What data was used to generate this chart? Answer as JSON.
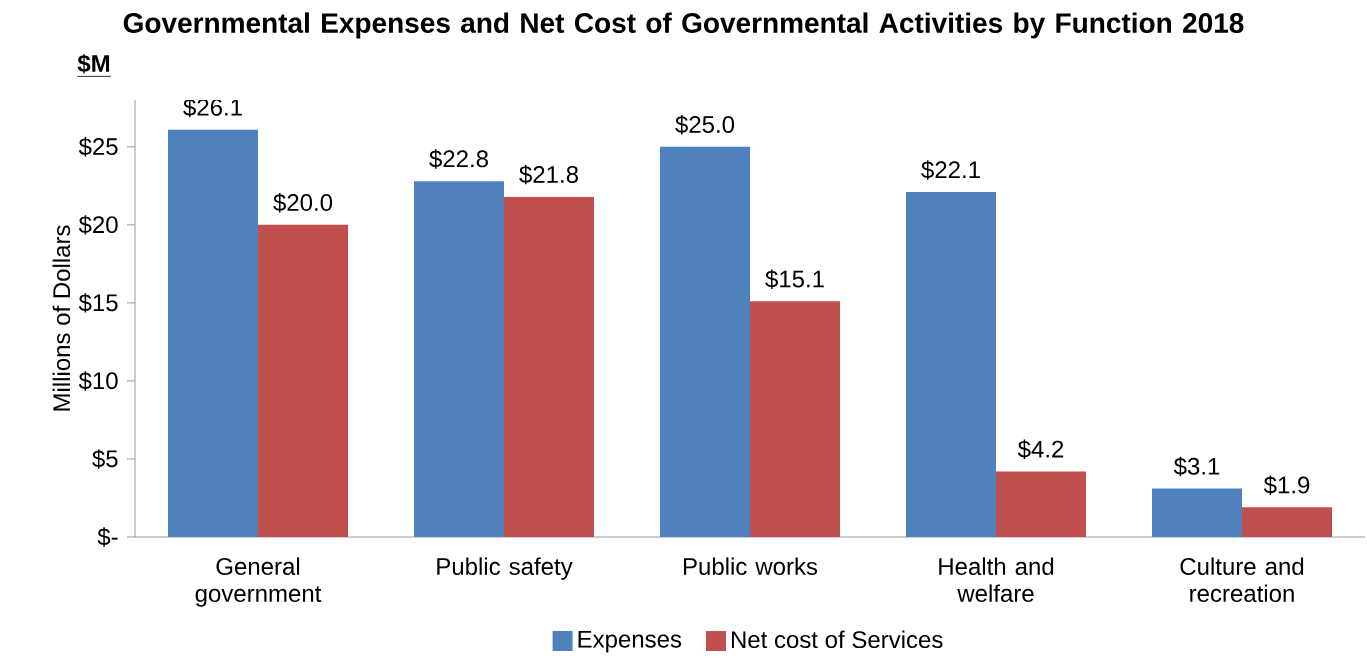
{
  "chart_data": {
    "type": "bar",
    "title": "Governmental Expenses and Net Cost of Governmental Activities by Function 2018",
    "ylabel": "Millions of Dollars",
    "annotations": [
      "$M"
    ],
    "categories": [
      "General government",
      "Public safety",
      "Public works",
      "Health and welfare",
      "Culture and recreation"
    ],
    "series": [
      {
        "name": "Expenses",
        "color": "#4f81bd",
        "values": [
          26.1,
          22.8,
          25.0,
          22.1,
          3.1
        ],
        "value_labels": [
          "$26.1",
          "$22.8",
          "$25.0",
          "$22.1",
          "$3.1"
        ]
      },
      {
        "name": "Net cost of Services",
        "color": "#c0504d",
        "values": [
          20.0,
          21.8,
          15.1,
          4.2,
          1.9
        ],
        "value_labels": [
          "$20.0",
          "$21.8",
          "$15.1",
          "$4.2",
          "$1.9"
        ]
      }
    ],
    "ylim": [
      0,
      28
    ],
    "yticks": [
      {
        "value": 0,
        "label": "$-"
      },
      {
        "value": 5,
        "label": "$5"
      },
      {
        "value": 10,
        "label": "$10"
      },
      {
        "value": 15,
        "label": "$15"
      },
      {
        "value": 20,
        "label": "$20"
      },
      {
        "value": 25,
        "label": "$25"
      }
    ],
    "grid": false,
    "legend": "bottom"
  }
}
